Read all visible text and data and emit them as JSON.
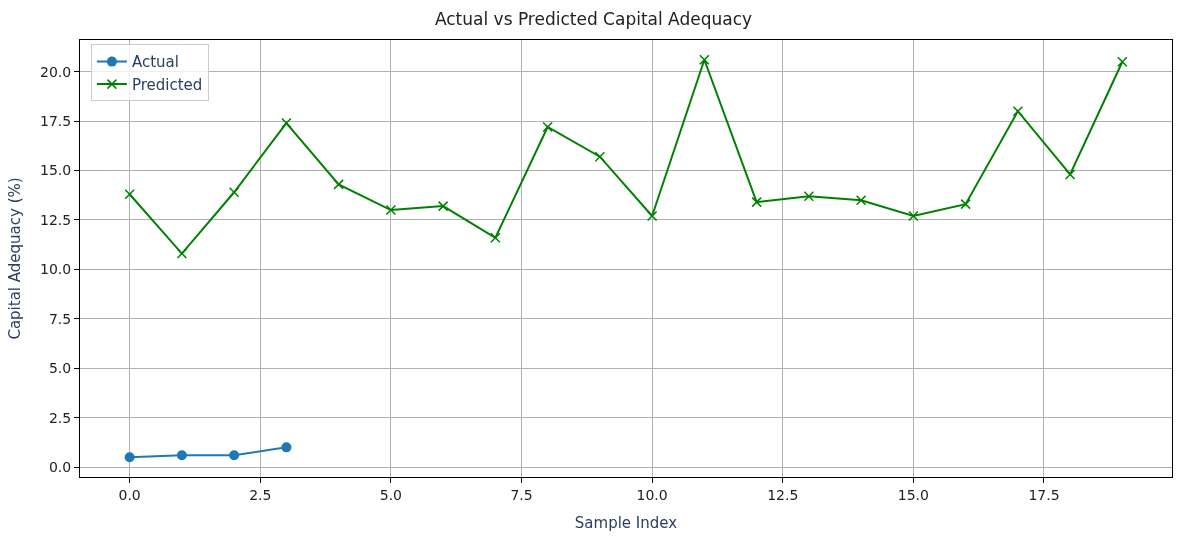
{
  "chart_data": {
    "type": "line",
    "title": "Actual vs Predicted Capital Adequacy",
    "xlabel": "Sample Index",
    "ylabel": "Capital Adequacy (%)",
    "x": [
      0,
      1,
      2,
      3,
      4,
      5,
      6,
      7,
      8,
      9,
      10,
      11,
      12,
      13,
      14,
      15,
      16,
      17,
      18,
      19
    ],
    "series": [
      {
        "name": "Actual",
        "color": "#1f77b4",
        "marker": "circle",
        "x": [
          0,
          1,
          2,
          3
        ],
        "values": [
          0.5,
          0.6,
          0.6,
          1.0
        ]
      },
      {
        "name": "Predicted",
        "color": "#008000",
        "marker": "cross",
        "values": [
          13.8,
          10.8,
          13.9,
          17.4,
          14.3,
          13.0,
          13.2,
          11.6,
          17.2,
          15.7,
          12.7,
          20.6,
          13.4,
          13.7,
          13.5,
          12.7,
          13.3,
          18.0,
          14.8,
          20.5
        ]
      }
    ],
    "xlim": [
      -0.95,
      19.95
    ],
    "xticks": [
      {
        "value": 0,
        "label": "0.0"
      },
      {
        "value": 2.5,
        "label": "2.5"
      },
      {
        "value": 5,
        "label": "5.0"
      },
      {
        "value": 7.5,
        "label": "7.5"
      },
      {
        "value": 10,
        "label": "10.0"
      },
      {
        "value": 12.5,
        "label": "12.5"
      },
      {
        "value": 15,
        "label": "15.0"
      },
      {
        "value": 17.5,
        "label": "17.5"
      }
    ],
    "ylim": [
      -0.5,
      21.6
    ],
    "yticks": [
      {
        "value": 0,
        "label": "0.0"
      },
      {
        "value": 2.5,
        "label": "2.5"
      },
      {
        "value": 5,
        "label": "5.0"
      },
      {
        "value": 7.5,
        "label": "7.5"
      },
      {
        "value": 10,
        "label": "10.0"
      },
      {
        "value": 12.5,
        "label": "12.5"
      },
      {
        "value": 15,
        "label": "15.0"
      },
      {
        "value": 17.5,
        "label": "17.5"
      },
      {
        "value": 20,
        "label": "20.0"
      }
    ],
    "grid": true,
    "legend": "top left",
    "line_style": "solid"
  }
}
